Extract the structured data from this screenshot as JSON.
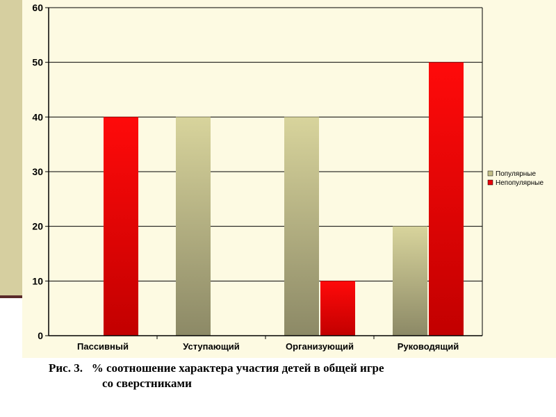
{
  "caption": {
    "prefix": "Рис. 3.",
    "line1": "% соотношение характера участия детей в общей игре",
    "line2": "со сверстниками"
  },
  "colors": {
    "popular": "#c4c08a",
    "unpopular": "#e8000a",
    "background": "#fdfae2"
  },
  "chart_data": {
    "type": "bar",
    "categories": [
      "Пассивный",
      "Уступающий",
      "Организующий",
      "Руководящий"
    ],
    "series": [
      {
        "name": "Популярные",
        "values": [
          0,
          40,
          40,
          20
        ]
      },
      {
        "name": "Непопулярные",
        "values": [
          40,
          0,
          10,
          50
        ]
      }
    ],
    "ylim": [
      0,
      60
    ],
    "yticks": [
      0,
      10,
      20,
      30,
      40,
      50,
      60
    ],
    "grid": true,
    "legend": "right"
  }
}
